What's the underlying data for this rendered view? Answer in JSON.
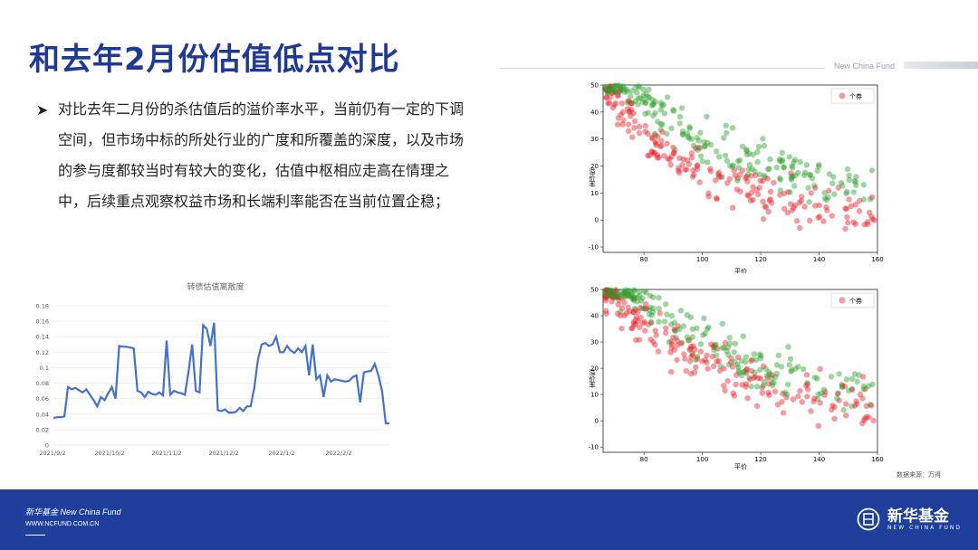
{
  "title": "和去年2月份估值低点对比",
  "brand_header": "New China Fund",
  "bullet_symbol": "➤",
  "paragraph": "对比去年二月份的杀估值后的溢价率水平，当前仍有一定的下调空间，但市场中标的所处行业的广度和所覆盖的深度，以及市场的参与度都较当时有较大的变化，估值中枢相应走高在情理之中，后续重点观察权益市场和长端利率能否在当前位置企稳；",
  "source_note": "数据来源：万得",
  "footer": {
    "logo_text": "新华基金 New China Fund",
    "url": "WWW.NCFUND.COM.CN",
    "brand_name": "新华基金",
    "brand_sub": "NEW CHINA FUND"
  },
  "colors": {
    "title": "#1f3a93",
    "footer": "#1e3f9b",
    "line": "#4472c4",
    "red": "#e8202a",
    "green": "#2ca02c"
  },
  "chart_data": [
    {
      "type": "line",
      "title": "转债估值离散度",
      "yticks": [
        "0",
        "0.02",
        "0.04",
        "0.06",
        "0.08",
        "0.1",
        "0.12",
        "0.14",
        "0.16",
        "0.18"
      ],
      "xticks": [
        "2021/9/2",
        "2021/10/2",
        "2021/11/2",
        "2021/12/2",
        "2022/1/2",
        "2022/2/2"
      ],
      "ylim": [
        0,
        0.18
      ],
      "values": [
        0.035,
        0.036,
        0.036,
        0.037,
        0.075,
        0.072,
        0.074,
        0.071,
        0.068,
        0.072,
        0.065,
        0.058,
        0.05,
        0.062,
        0.058,
        0.067,
        0.075,
        0.06,
        0.128,
        0.127,
        0.127,
        0.126,
        0.125,
        0.07,
        0.068,
        0.062,
        0.069,
        0.066,
        0.065,
        0.068,
        0.064,
        0.135,
        0.065,
        0.07,
        0.068,
        0.067,
        0.065,
        0.095,
        0.13,
        0.07,
        0.068,
        0.155,
        0.15,
        0.128,
        0.158,
        0.045,
        0.044,
        0.046,
        0.042,
        0.042,
        0.043,
        0.048,
        0.044,
        0.05,
        0.05,
        0.074,
        0.11,
        0.13,
        0.132,
        0.128,
        0.13,
        0.14,
        0.12,
        0.12,
        0.128,
        0.122,
        0.119,
        0.125,
        0.12,
        0.128,
        0.09,
        0.13,
        0.085,
        0.09,
        0.062,
        0.09,
        0.082,
        0.085,
        0.084,
        0.083,
        0.082,
        0.083,
        0.088,
        0.09,
        0.055,
        0.094,
        0.095,
        0.096,
        0.105,
        0.09,
        0.07,
        0.028,
        0.028
      ]
    },
    {
      "type": "scatter",
      "xlabel": "平价",
      "ylabel": "溢价率",
      "xticks": [
        "80",
        "100",
        "120",
        "140",
        "160"
      ],
      "yticks": [
        "50",
        "40",
        "30",
        "20",
        "10",
        "0",
        "-10"
      ],
      "xlim": [
        66,
        160
      ],
      "ylim": [
        -12,
        50
      ],
      "legend": "个券",
      "legend_position": "top-right"
    },
    {
      "type": "scatter",
      "xlabel": "平价",
      "ylabel": "溢价率",
      "xticks": [
        "80",
        "100",
        "120",
        "140",
        "160"
      ],
      "yticks": [
        "50",
        "40",
        "30",
        "20",
        "10",
        "0",
        "-10"
      ],
      "xlim": [
        66,
        160
      ],
      "ylim": [
        -12,
        50
      ],
      "legend": "个券",
      "legend_position": "top-right"
    }
  ]
}
